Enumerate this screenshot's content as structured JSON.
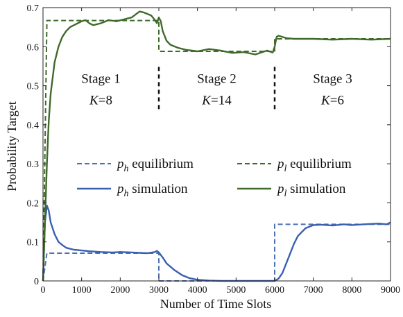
{
  "chart_data": {
    "type": "line",
    "title": "",
    "xlabel": "Number of Time Slots",
    "ylabel": "Probability Target",
    "xlim": [
      0,
      9000
    ],
    "ylim": [
      0,
      0.7
    ],
    "xticks": [
      0,
      1000,
      2000,
      3000,
      4000,
      5000,
      6000,
      7000,
      8000,
      9000
    ],
    "yticks": [
      0,
      0.1,
      0.2,
      0.3,
      0.4,
      0.5,
      0.6,
      0.7
    ],
    "x_tick_labels": [
      "0",
      "1000",
      "2000",
      "3000",
      "4000",
      "5000",
      "6000",
      "7000",
      "8000",
      "9000"
    ],
    "y_tick_labels": [
      "0",
      "0.1",
      "0.2",
      "0.3",
      "0.4",
      "0.5",
      "0.6",
      "0.7"
    ],
    "grid": false,
    "legend_placement": "center",
    "stage_boundaries": [
      3000,
      6000
    ],
    "stages": [
      {
        "name": "Stage 1",
        "k_symbol": "K",
        "k_value": "=8"
      },
      {
        "name": "Stage 2",
        "k_symbol": "K",
        "k_value": "=14"
      },
      {
        "name": "Stage 3",
        "k_symbol": "K",
        "k_value": "=6"
      }
    ],
    "series": [
      {
        "name": "ph equilibrium",
        "legend_symbol": "p",
        "legend_sub": "h",
        "legend_text": " equilibrium",
        "style": "dashed",
        "color": "#4a6fb5",
        "x": [
          0,
          100,
          3000,
          3000,
          6000,
          6000,
          9000
        ],
        "y": [
          0,
          0.071,
          0.071,
          0,
          0,
          0.145,
          0.145
        ]
      },
      {
        "name": "pl equilibrium",
        "legend_symbol": "p",
        "legend_sub": "l",
        "legend_text": " equilibrium",
        "style": "dashed",
        "color": "#3f6a2a",
        "x": [
          0,
          100,
          3000,
          3000,
          6000,
          6000,
          9000
        ],
        "y": [
          0,
          0.667,
          0.667,
          0.588,
          0.588,
          0.62,
          0.62
        ]
      },
      {
        "name": "ph simulation",
        "legend_symbol": "p",
        "legend_sub": "h",
        "legend_text": " simulation",
        "style": "solid",
        "color": "#3a5fb0",
        "x": [
          0,
          50,
          100,
          150,
          200,
          300,
          400,
          500,
          600,
          800,
          1000,
          1200,
          1500,
          1800,
          2000,
          2300,
          2500,
          2700,
          2900,
          2950,
          3000,
          3100,
          3200,
          3400,
          3600,
          3800,
          4000,
          4300,
          4600,
          5000,
          5500,
          6000,
          6100,
          6200,
          6300,
          6400,
          6500,
          6600,
          6800,
          7000,
          7200,
          7500,
          7800,
          8000,
          8300,
          8500,
          8700,
          8900,
          9000
        ],
        "y": [
          0,
          0.15,
          0.193,
          0.18,
          0.15,
          0.12,
          0.1,
          0.092,
          0.085,
          0.08,
          0.078,
          0.076,
          0.074,
          0.073,
          0.074,
          0.073,
          0.072,
          0.071,
          0.074,
          0.077,
          0.073,
          0.06,
          0.045,
          0.028,
          0.015,
          0.007,
          0.003,
          0.001,
          0.0,
          0.0,
          0.0,
          0.0,
          0.006,
          0.02,
          0.045,
          0.07,
          0.095,
          0.115,
          0.135,
          0.143,
          0.144,
          0.142,
          0.145,
          0.143,
          0.145,
          0.146,
          0.147,
          0.145,
          0.15
        ]
      },
      {
        "name": "pl simulation",
        "legend_symbol": "p",
        "legend_sub": "l",
        "legend_text": " simulation",
        "style": "solid",
        "color": "#3f6a2a",
        "x": [
          0,
          50,
          100,
          150,
          200,
          300,
          400,
          500,
          600,
          700,
          800,
          900,
          1000,
          1100,
          1200,
          1300,
          1500,
          1700,
          1900,
          2100,
          2300,
          2500,
          2600,
          2800,
          2900,
          2950,
          3000,
          3050,
          3100,
          3200,
          3300,
          3500,
          3700,
          4000,
          4300,
          4600,
          4900,
          5200,
          5500,
          5800,
          5950,
          6000,
          6050,
          6100,
          6300,
          6500,
          7000,
          7500,
          8000,
          8500,
          9000
        ],
        "y": [
          0,
          0.15,
          0.3,
          0.41,
          0.48,
          0.56,
          0.6,
          0.625,
          0.64,
          0.65,
          0.655,
          0.66,
          0.665,
          0.668,
          0.66,
          0.655,
          0.66,
          0.668,
          0.665,
          0.67,
          0.675,
          0.69,
          0.688,
          0.68,
          0.668,
          0.66,
          0.675,
          0.665,
          0.64,
          0.615,
          0.605,
          0.597,
          0.592,
          0.588,
          0.594,
          0.59,
          0.584,
          0.586,
          0.58,
          0.59,
          0.585,
          0.6,
          0.625,
          0.628,
          0.622,
          0.62,
          0.62,
          0.618,
          0.62,
          0.618,
          0.62
        ]
      }
    ]
  }
}
